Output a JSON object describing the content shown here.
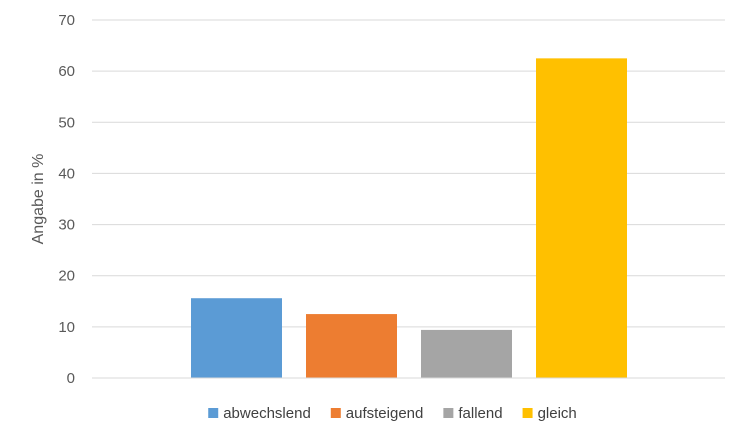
{
  "chart_data": {
    "type": "bar",
    "categories": [
      "abwechslend",
      "aufsteigend",
      "fallend",
      "gleich"
    ],
    "series": [
      {
        "name": "abwechslend",
        "value": 15.6,
        "color": "#5B9BD5"
      },
      {
        "name": "aufsteigend",
        "value": 12.5,
        "color": "#ED7D31"
      },
      {
        "name": "fallend",
        "value": 9.4,
        "color": "#A5A5A5"
      },
      {
        "name": "gleich",
        "value": 62.5,
        "color": "#FFC000"
      }
    ],
    "title": "",
    "xlabel": "",
    "ylabel": "Angabe in %",
    "ylim": [
      0,
      70
    ],
    "yticks": [
      0,
      10,
      20,
      30,
      40,
      50,
      60,
      70
    ],
    "grid": true,
    "legend_position": "bottom"
  }
}
